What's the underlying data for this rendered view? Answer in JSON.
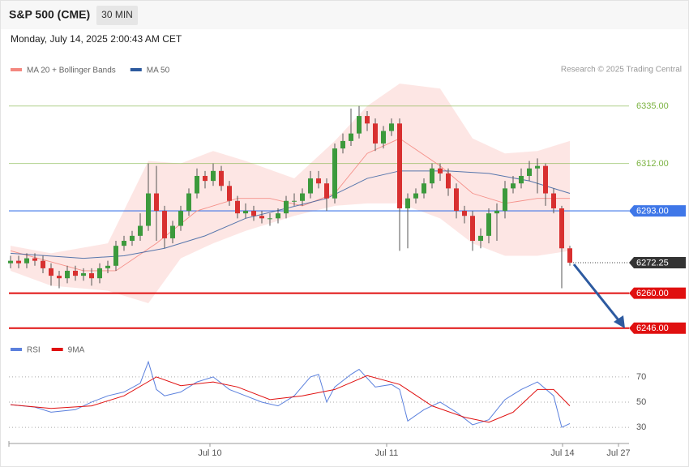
{
  "header": {
    "symbol": "S&P 500 (CME)",
    "interval": "30 MIN",
    "date": "Monday, July 14, 2025 2:00:43 AM CET",
    "credit": "Research © 2025 Trading Central"
  },
  "chart_data": [
    {
      "type": "candlestick",
      "x": [
        0,
        1,
        2,
        3,
        4,
        5,
        6,
        7,
        8,
        9,
        10,
        11,
        12,
        13,
        14,
        15,
        16,
        17,
        18,
        19,
        20,
        21,
        22,
        23,
        24,
        25,
        26,
        27,
        28,
        29,
        30,
        31,
        32,
        33,
        34,
        35,
        36,
        37,
        38,
        39,
        40,
        41,
        42,
        43,
        44,
        45,
        46,
        47,
        48,
        49,
        50,
        51,
        52,
        53,
        54,
        55,
        56,
        57,
        58,
        59,
        60,
        61,
        62,
        63,
        64,
        65,
        66,
        67,
        68,
        69
      ],
      "open": [
        6272,
        6273,
        6272,
        6274,
        6273,
        6270,
        6267,
        6266,
        6269,
        6267,
        6268,
        6266,
        6270,
        6271,
        6279,
        6281,
        6283,
        6287,
        6300,
        6293,
        6282,
        6287,
        6293,
        6300,
        6307,
        6305,
        6309,
        6303,
        6297,
        6292,
        6293,
        6291,
        6290,
        6290,
        6292,
        6297,
        6297,
        6300,
        6306,
        6304,
        6298,
        6318,
        6321,
        6324,
        6331,
        6328,
        6320,
        6325,
        6328,
        6294,
        6298,
        6300,
        6304,
        6310,
        6308,
        6302,
        6293,
        6291,
        6281,
        6283,
        6292,
        6293,
        6302,
        6304,
        6307,
        6310,
        6311,
        6300,
        6294,
        6278
      ],
      "high": [
        6275,
        6275,
        6276,
        6276,
        6275,
        6272,
        6269,
        6271,
        6271,
        6270,
        6270,
        6272,
        6273,
        6281,
        6283,
        6285,
        6292,
        6312,
        6311,
        6295,
        6289,
        6295,
        6302,
        6310,
        6309,
        6312,
        6311,
        6305,
        6299,
        6296,
        6295,
        6293,
        6292,
        6294,
        6299,
        6300,
        6302,
        6309,
        6309,
        6306,
        6320,
        6324,
        6334,
        6335,
        6333,
        6330,
        6327,
        6330,
        6330,
        6300,
        6302,
        6306,
        6312,
        6312,
        6310,
        6304,
        6295,
        6293,
        6286,
        6294,
        6296,
        6305,
        6307,
        6310,
        6313,
        6314,
        6312,
        6302,
        6295,
        6279
      ],
      "low": [
        6270,
        6270,
        6270,
        6271,
        6268,
        6263,
        6262,
        6264,
        6265,
        6265,
        6263,
        6264,
        6268,
        6269,
        6277,
        6279,
        6281,
        6285,
        6281,
        6278,
        6280,
        6285,
        6291,
        6298,
        6302,
        6303,
        6301,
        6295,
        6290,
        6290,
        6289,
        6288,
        6287,
        6288,
        6290,
        6295,
        6295,
        6298,
        6302,
        6293,
        6296,
        6316,
        6319,
        6322,
        6325,
        6317,
        6318,
        6323,
        6277,
        6278,
        6296,
        6298,
        6302,
        6305,
        6299,
        6290,
        6288,
        6277,
        6278,
        6280,
        6281,
        6290,
        6300,
        6302,
        6305,
        6300,
        6295,
        6292,
        6262,
        6271
      ],
      "close": [
        6273,
        6272,
        6274,
        6273,
        6270,
        6267,
        6266,
        6269,
        6267,
        6268,
        6266,
        6270,
        6271,
        6279,
        6281,
        6283,
        6287,
        6300,
        6293,
        6282,
        6287,
        6293,
        6300,
        6307,
        6305,
        6309,
        6303,
        6297,
        6292,
        6293,
        6291,
        6290,
        6290,
        6292,
        6297,
        6297,
        6300,
        6306,
        6304,
        6298,
        6318,
        6321,
        6324,
        6331,
        6328,
        6320,
        6325,
        6328,
        6294,
        6298,
        6300,
        6304,
        6310,
        6308,
        6302,
        6293,
        6291,
        6281,
        6283,
        6292,
        6293,
        6302,
        6304,
        6307,
        6310,
        6311,
        6300,
        6294,
        6278,
        6272.25
      ],
      "up_color": "#3c9a3c",
      "down_color": "#d83030",
      "bands": {
        "name": "MA 20 + Bollinger Bands",
        "color": "#f4877f",
        "fill": "#fde3e1",
        "x": [
          0,
          5,
          12,
          17,
          21,
          25,
          29,
          35,
          40,
          44,
          48,
          53,
          57,
          61,
          65,
          69
        ],
        "upper": [
          6279,
          6276,
          6280,
          6313,
          6312,
          6317,
          6313,
          6306,
          6321,
          6335,
          6344,
          6342,
          6322,
          6316,
          6317,
          6321
        ],
        "lower": [
          6269,
          6263,
          6261,
          6256,
          6274,
          6280,
          6285,
          6291,
          6295,
          6296,
          6296,
          6290,
          6280,
          6275,
          6275,
          6277
        ]
      },
      "series": [
        {
          "name": "MA 20 + Bollinger Bands",
          "color": "#f4877f",
          "x": [
            0,
            9,
            13,
            18,
            23,
            28,
            32,
            36,
            40,
            44,
            48,
            53,
            57,
            61,
            65,
            69
          ],
          "values": [
            6277,
            6269,
            6269,
            6280,
            6293,
            6298,
            6298,
            6295,
            6300,
            6316,
            6322,
            6311,
            6300,
            6296,
            6298,
            6298
          ]
        },
        {
          "name": "MA 50",
          "color": "#2d5a9e",
          "x": [
            0,
            9,
            14,
            19,
            24,
            29,
            34,
            39,
            44,
            48,
            54,
            59,
            64,
            69
          ],
          "values": [
            6276,
            6274,
            6275,
            6278,
            6283,
            6290,
            6294,
            6298,
            6306,
            6309,
            6309,
            6308,
            6305,
            6300
          ]
        }
      ],
      "levels": [
        {
          "value": 6335,
          "label": "6335.00",
          "color": "#7cb342",
          "line": "thin",
          "box": false
        },
        {
          "value": 6312,
          "label": "6312.00",
          "color": "#7cb342",
          "line": "thin",
          "box": false
        },
        {
          "value": 6293,
          "label": "6293.00",
          "color": "#3f77e8",
          "line": "solid",
          "box": true
        },
        {
          "value": 6272.25,
          "label": "6272.25",
          "color": "#333333",
          "line": "dotted",
          "box": true
        },
        {
          "value": 6260,
          "label": "6260.00",
          "color": "#e01010",
          "line": "thick",
          "box": true
        },
        {
          "value": 6246,
          "label": "6246.00",
          "color": "#e01010",
          "line": "thick",
          "box": true
        }
      ],
      "xlim": [
        -0.2,
        76.3
      ],
      "ylim": [
        6243,
        6345
      ],
      "xticks": [
        {
          "value": 24.6,
          "label": "Jul 10"
        },
        {
          "value": 46.4,
          "label": "Jul 11"
        },
        {
          "value": 68.1,
          "label": "Jul 14"
        },
        {
          "value": 75,
          "label": "Jul 27"
        }
      ]
    },
    {
      "type": "line",
      "series": [
        {
          "name": "RSI",
          "color": "#5b80dd",
          "x": [
            0,
            3,
            5,
            8,
            10,
            12,
            14,
            16,
            17,
            18,
            19,
            21,
            23,
            25,
            27,
            29,
            31,
            33,
            35,
            37,
            38,
            39,
            40,
            42,
            43,
            45,
            47,
            48,
            49,
            51,
            53,
            55,
            57,
            59,
            61,
            63,
            65,
            67,
            68,
            69
          ],
          "values": [
            48,
            46,
            42,
            44,
            50,
            55,
            58,
            65,
            82,
            60,
            55,
            58,
            66,
            70,
            60,
            55,
            50,
            47,
            55,
            70,
            72,
            50,
            62,
            72,
            76,
            62,
            64,
            60,
            35,
            44,
            50,
            42,
            32,
            36,
            52,
            60,
            66,
            55,
            30,
            33
          ]
        },
        {
          "name": "9MA",
          "color": "#e01010",
          "x": [
            0,
            5,
            10,
            14,
            18,
            21,
            25,
            28,
            32,
            36,
            40,
            44,
            48,
            52,
            56,
            59,
            62,
            65,
            67,
            69
          ],
          "values": [
            48,
            45,
            47,
            55,
            70,
            63,
            66,
            62,
            52,
            55,
            60,
            71,
            64,
            47,
            38,
            34,
            42,
            60,
            60,
            47
          ]
        }
      ],
      "xlim": [
        -0.2,
        76.3
      ],
      "ylim": [
        22,
        86
      ],
      "yticks": [
        70,
        50,
        30
      ]
    }
  ]
}
